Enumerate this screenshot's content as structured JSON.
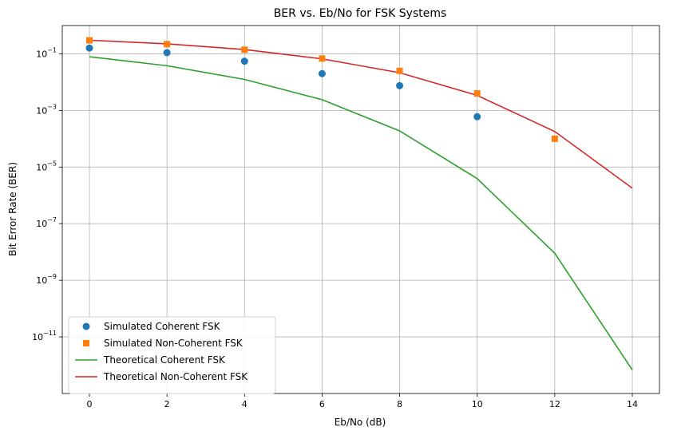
{
  "chart_data": {
    "type": "line",
    "title": "BER vs. Eb/No for FSK Systems",
    "xlabel": "Eb/No (dB)",
    "ylabel": "Bit Error Rate (BER)",
    "y_scale": "log",
    "xlim": [
      -0.7,
      14.7
    ],
    "ylim": [
      1e-13,
      1
    ],
    "x_ticks": [
      0,
      2,
      4,
      6,
      8,
      10,
      12,
      14
    ],
    "x_tick_labels": [
      "0",
      "2",
      "4",
      "6",
      "8",
      "10",
      "12",
      "14"
    ],
    "y_ticks": [
      -11,
      -9,
      -7,
      -5,
      -3,
      -1
    ],
    "y_tick_base": "10",
    "y_tick_exponents": [
      "−11",
      "−9",
      "−7",
      "−5",
      "−3",
      "−1"
    ],
    "grid": true,
    "legend_position": "lower-left",
    "series": [
      {
        "name": "Simulated Coherent FSK",
        "marker": "circle",
        "line": false,
        "color": "#1f77b4",
        "x": [
          0,
          2,
          4,
          6,
          8,
          10,
          12
        ],
        "y": [
          0.16,
          0.11,
          0.055,
          0.02,
          0.0075,
          0.0006,
          null
        ]
      },
      {
        "name": "Simulated Non-Coherent FSK",
        "marker": "square",
        "line": false,
        "color": "#ff7f0e",
        "x": [
          0,
          2,
          4,
          6,
          8,
          10,
          12
        ],
        "y": [
          0.3,
          0.22,
          0.14,
          0.068,
          0.025,
          0.004,
          0.0001
        ]
      },
      {
        "name": "Theoretical Coherent FSK",
        "marker": "none",
        "line": true,
        "color": "#2ca02c",
        "x": [
          0,
          2,
          4,
          6,
          8,
          10,
          12,
          14
        ],
        "y": [
          0.079,
          0.038,
          0.0125,
          0.0024,
          0.00019,
          3.9e-06,
          9e-09,
          6.8e-13
        ]
      },
      {
        "name": "Theoretical Non-Coherent FSK",
        "marker": "none",
        "line": true,
        "color": "#d62728",
        "x": [
          0,
          2,
          4,
          6,
          8,
          10,
          12,
          14
        ],
        "y": [
          0.303,
          0.226,
          0.142,
          0.0665,
          0.0215,
          0.0034,
          0.00018,
          1.8e-06
        ]
      }
    ]
  }
}
